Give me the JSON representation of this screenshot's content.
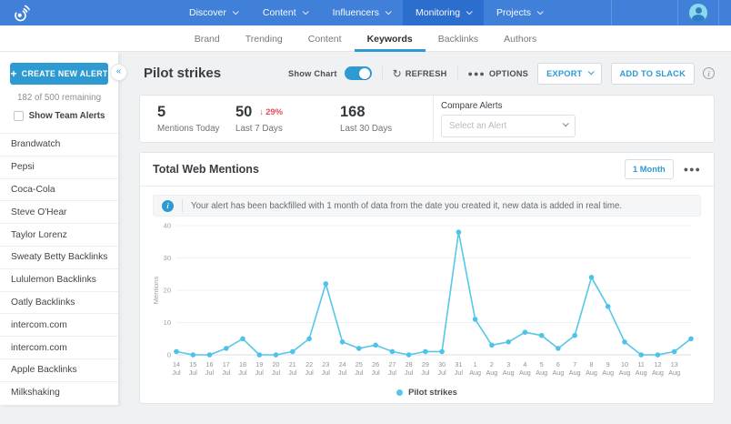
{
  "colors": {
    "nav_bg": "#4080d8",
    "nav_active": "#2c6ecd",
    "accent": "#2e9ad2",
    "line": "#55c7e9",
    "neg": "#e04f5f"
  },
  "top_nav": {
    "items": [
      {
        "label": "Discover",
        "active": false
      },
      {
        "label": "Content",
        "active": false
      },
      {
        "label": "Influencers",
        "active": false
      },
      {
        "label": "Monitoring",
        "active": true
      },
      {
        "label": "Projects",
        "active": false
      }
    ]
  },
  "sub_nav": {
    "tabs": [
      {
        "label": "Brand",
        "active": false
      },
      {
        "label": "Trending",
        "active": false
      },
      {
        "label": "Content",
        "active": false
      },
      {
        "label": "Keywords",
        "active": true
      },
      {
        "label": "Backlinks",
        "active": false
      },
      {
        "label": "Authors",
        "active": false
      }
    ]
  },
  "sidebar": {
    "create_button": "CREATE NEW ALERT",
    "remaining": "182 of 500 remaining",
    "team_alerts_label": "Show Team Alerts",
    "team_alerts_checked": false,
    "alerts": [
      "Brandwatch",
      "Pepsi",
      "Coca-Cola",
      "Steve O'Hear",
      "Taylor Lorenz",
      "Sweaty Betty Backlinks",
      "Lululemon Backlinks",
      "Oatly Backlinks",
      "intercom.com",
      "intercom.com",
      "Apple Backlinks",
      "Milkshaking"
    ]
  },
  "header": {
    "title": "Pilot strikes",
    "show_chart_label": "Show Chart",
    "show_chart_on": true,
    "refresh_label": "REFRESH",
    "options_label": "OPTIONS",
    "export_label": "EXPORT",
    "add_to_slack_label": "ADD TO SLACK"
  },
  "stats": {
    "items": [
      {
        "value": "5",
        "label": "Mentions Today"
      },
      {
        "value": "50",
        "label": "Last 7 Days",
        "delta": "29%",
        "delta_direction": "down"
      },
      {
        "value": "168",
        "label": "Last 30 Days"
      }
    ],
    "compare_label": "Compare Alerts",
    "compare_placeholder": "Select an Alert"
  },
  "chart_panel": {
    "title": "Total Web Mentions",
    "range_label": "1 Month",
    "banner_text": "Your alert has been backfilled with 1 month of data from the date you created it, new data is added in real time.",
    "legend": "Pilot strikes"
  },
  "chart_data": {
    "type": "line",
    "title": "Total Web Mentions",
    "series_name": "Pilot strikes",
    "x": [
      "14 Jul",
      "15 Jul",
      "16 Jul",
      "17 Jul",
      "18 Jul",
      "19 Jul",
      "20 Jul",
      "21 Jul",
      "22 Jul",
      "23 Jul",
      "24 Jul",
      "25 Jul",
      "26 Jul",
      "27 Jul",
      "28 Jul",
      "29 Jul",
      "30 Jul",
      "31 Jul",
      "1 Aug",
      "2 Aug",
      "3 Aug",
      "4 Aug",
      "5 Aug",
      "6 Aug",
      "7 Aug",
      "8 Aug",
      "9 Aug",
      "10 Aug",
      "11 Aug",
      "12 Aug",
      "13 Aug",
      ""
    ],
    "values": [
      1,
      0,
      0,
      2,
      5,
      0,
      0,
      1,
      5,
      22,
      4,
      2,
      3,
      1,
      0,
      1,
      1,
      38,
      11,
      3,
      4,
      7,
      6,
      2,
      6,
      24,
      15,
      4,
      0,
      0,
      1,
      5
    ],
    "ylabel": "Mentions",
    "ylim": [
      0,
      40
    ],
    "yticks": [
      0,
      10,
      20,
      30,
      40
    ],
    "grid": true,
    "legend_position": "bottom"
  }
}
